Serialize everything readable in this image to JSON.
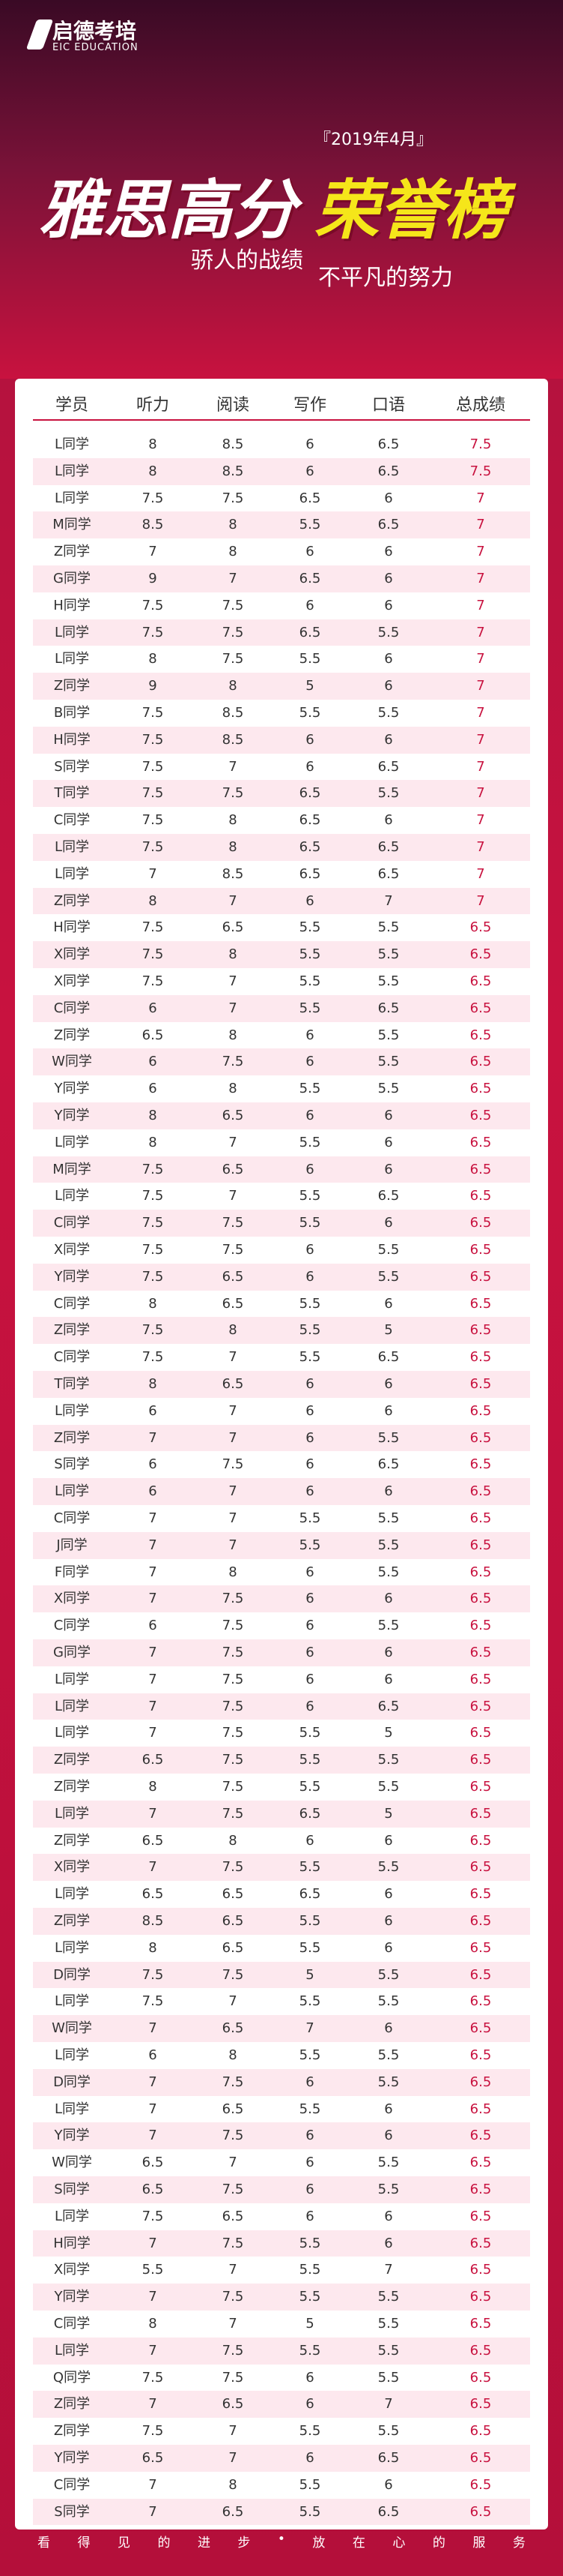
{
  "header": {
    "logo": "启德考培",
    "logo_sub": "EIC EDUCATION",
    "date": "『2019年4月』",
    "title_main": "雅思高分",
    "title_highlight": "荣誉榜",
    "slogan_left": "骄人的战绩",
    "slogan_right": "不平凡的努力"
  },
  "table": {
    "headers": [
      "学员",
      "听力",
      "阅读",
      "写作",
      "口语",
      "总成绩"
    ],
    "rows": [
      [
        "L同学",
        "8",
        "8.5",
        "6",
        "6.5",
        "7.5"
      ],
      [
        "L同学",
        "8",
        "8.5",
        "6",
        "6.5",
        "7.5"
      ],
      [
        "L同学",
        "7.5",
        "7.5",
        "6.5",
        "6",
        "7"
      ],
      [
        "M同学",
        "8.5",
        "8",
        "5.5",
        "6.5",
        "7"
      ],
      [
        "Z同学",
        "7",
        "8",
        "6",
        "6",
        "7"
      ],
      [
        "G同学",
        "9",
        "7",
        "6.5",
        "6",
        "7"
      ],
      [
        "H同学",
        "7.5",
        "7.5",
        "6",
        "6",
        "7"
      ],
      [
        "L同学",
        "7.5",
        "7.5",
        "6.5",
        "5.5",
        "7"
      ],
      [
        "L同学",
        "8",
        "7.5",
        "5.5",
        "6",
        "7"
      ],
      [
        "Z同学",
        "9",
        "8",
        "5",
        "6",
        "7"
      ],
      [
        "B同学",
        "7.5",
        "8.5",
        "5.5",
        "5.5",
        "7"
      ],
      [
        "H同学",
        "7.5",
        "8.5",
        "6",
        "6",
        "7"
      ],
      [
        "S同学",
        "7.5",
        "7",
        "6",
        "6.5",
        "7"
      ],
      [
        "T同学",
        "7.5",
        "7.5",
        "6.5",
        "5.5",
        "7"
      ],
      [
        "C同学",
        "7.5",
        "8",
        "6.5",
        "6",
        "7"
      ],
      [
        "L同学",
        "7.5",
        "8",
        "6.5",
        "6.5",
        "7"
      ],
      [
        "L同学",
        "7",
        "8.5",
        "6.5",
        "6.5",
        "7"
      ],
      [
        "Z同学",
        "8",
        "7",
        "6",
        "7",
        "7"
      ],
      [
        "H同学",
        "7.5",
        "6.5",
        "5.5",
        "5.5",
        "6.5"
      ],
      [
        "X同学",
        "7.5",
        "8",
        "5.5",
        "5.5",
        "6.5"
      ],
      [
        "X同学",
        "7.5",
        "7",
        "5.5",
        "5.5",
        "6.5"
      ],
      [
        "C同学",
        "6",
        "7",
        "5.5",
        "6.5",
        "6.5"
      ],
      [
        "Z同学",
        "6.5",
        "8",
        "6",
        "5.5",
        "6.5"
      ],
      [
        "W同学",
        "6",
        "7.5",
        "6",
        "5.5",
        "6.5"
      ],
      [
        "Y同学",
        "6",
        "8",
        "5.5",
        "5.5",
        "6.5"
      ],
      [
        "Y同学",
        "8",
        "6.5",
        "6",
        "6",
        "6.5"
      ],
      [
        "L同学",
        "8",
        "7",
        "5.5",
        "6",
        "6.5"
      ],
      [
        "M同学",
        "7.5",
        "6.5",
        "6",
        "6",
        "6.5"
      ],
      [
        "L同学",
        "7.5",
        "7",
        "5.5",
        "6.5",
        "6.5"
      ],
      [
        "C同学",
        "7.5",
        "7.5",
        "5.5",
        "6",
        "6.5"
      ],
      [
        "X同学",
        "7.5",
        "7.5",
        "6",
        "5.5",
        "6.5"
      ],
      [
        "Y同学",
        "7.5",
        "6.5",
        "6",
        "5.5",
        "6.5"
      ],
      [
        "C同学",
        "8",
        "6.5",
        "5.5",
        "6",
        "6.5"
      ],
      [
        "Z同学",
        "7.5",
        "8",
        "5.5",
        "5",
        "6.5"
      ],
      [
        "C同学",
        "7.5",
        "7",
        "5.5",
        "6.5",
        "6.5"
      ],
      [
        "T同学",
        "8",
        "6.5",
        "6",
        "6",
        "6.5"
      ],
      [
        "L同学",
        "6",
        "7",
        "6",
        "6",
        "6.5"
      ],
      [
        "Z同学",
        "7",
        "7",
        "6",
        "5.5",
        "6.5"
      ],
      [
        "S同学",
        "6",
        "7.5",
        "6",
        "6.5",
        "6.5"
      ],
      [
        "L同学",
        "6",
        "7",
        "6",
        "6",
        "6.5"
      ],
      [
        "C同学",
        "7",
        "7",
        "5.5",
        "5.5",
        "6.5"
      ],
      [
        "J同学",
        "7",
        "7",
        "5.5",
        "5.5",
        "6.5"
      ],
      [
        "F同学",
        "7",
        "8",
        "6",
        "5.5",
        "6.5"
      ],
      [
        "X同学",
        "7",
        "7.5",
        "6",
        "6",
        "6.5"
      ],
      [
        "C同学",
        "6",
        "7.5",
        "6",
        "5.5",
        "6.5"
      ],
      [
        "G同学",
        "7",
        "7.5",
        "6",
        "6",
        "6.5"
      ],
      [
        "L同学",
        "7",
        "7.5",
        "6",
        "6",
        "6.5"
      ],
      [
        "L同学",
        "7",
        "7.5",
        "6",
        "6.5",
        "6.5"
      ],
      [
        "L同学",
        "7",
        "7.5",
        "5.5",
        "5",
        "6.5"
      ],
      [
        "Z同学",
        "6.5",
        "7.5",
        "5.5",
        "5.5",
        "6.5"
      ],
      [
        "Z同学",
        "8",
        "7.5",
        "5.5",
        "5.5",
        "6.5"
      ],
      [
        "L同学",
        "7",
        "7.5",
        "6.5",
        "5",
        "6.5"
      ],
      [
        "Z同学",
        "6.5",
        "8",
        "6",
        "6",
        "6.5"
      ],
      [
        "X同学",
        "7",
        "7.5",
        "5.5",
        "5.5",
        "6.5"
      ],
      [
        "L同学",
        "6.5",
        "6.5",
        "6.5",
        "6",
        "6.5"
      ],
      [
        "Z同学",
        "8.5",
        "6.5",
        "5.5",
        "6",
        "6.5"
      ],
      [
        "L同学",
        "8",
        "6.5",
        "5.5",
        "6",
        "6.5"
      ],
      [
        "D同学",
        "7.5",
        "7.5",
        "5",
        "5.5",
        "6.5"
      ],
      [
        "L同学",
        "7.5",
        "7",
        "5.5",
        "5.5",
        "6.5"
      ],
      [
        "W同学",
        "7",
        "6.5",
        "7",
        "6",
        "6.5"
      ],
      [
        "L同学",
        "6",
        "8",
        "5.5",
        "5.5",
        "6.5"
      ],
      [
        "D同学",
        "7",
        "7.5",
        "6",
        "5.5",
        "6.5"
      ],
      [
        "L同学",
        "7",
        "6.5",
        "5.5",
        "6",
        "6.5"
      ],
      [
        "Y同学",
        "7",
        "7.5",
        "6",
        "6",
        "6.5"
      ],
      [
        "W同学",
        "6.5",
        "7",
        "6",
        "5.5",
        "6.5"
      ],
      [
        "S同学",
        "6.5",
        "7.5",
        "6",
        "5.5",
        "6.5"
      ],
      [
        "L同学",
        "7.5",
        "6.5",
        "6",
        "6",
        "6.5"
      ],
      [
        "H同学",
        "7",
        "7.5",
        "5.5",
        "6",
        "6.5"
      ],
      [
        "X同学",
        "5.5",
        "7",
        "5.5",
        "7",
        "6.5"
      ],
      [
        "Y同学",
        "7",
        "7.5",
        "5.5",
        "5.5",
        "6.5"
      ],
      [
        "C同学",
        "8",
        "7",
        "5",
        "5.5",
        "6.5"
      ],
      [
        "L同学",
        "7",
        "7.5",
        "5.5",
        "5.5",
        "6.5"
      ],
      [
        "Q同学",
        "7.5",
        "7.5",
        "6",
        "5.5",
        "6.5"
      ],
      [
        "Z同学",
        "7",
        "6.5",
        "6",
        "7",
        "6.5"
      ],
      [
        "Z同学",
        "7.5",
        "7",
        "5.5",
        "5.5",
        "6.5"
      ],
      [
        "Y同学",
        "6.5",
        "7",
        "6",
        "6.5",
        "6.5"
      ],
      [
        "C同学",
        "7",
        "8",
        "5.5",
        "6",
        "6.5"
      ],
      [
        "S同学",
        "7",
        "6.5",
        "5.5",
        "6.5",
        "6.5"
      ]
    ]
  },
  "footer": [
    "看",
    "得",
    "见",
    "的",
    "进",
    "步",
    "•",
    "放",
    "在",
    "心",
    "的",
    "服",
    "务"
  ]
}
